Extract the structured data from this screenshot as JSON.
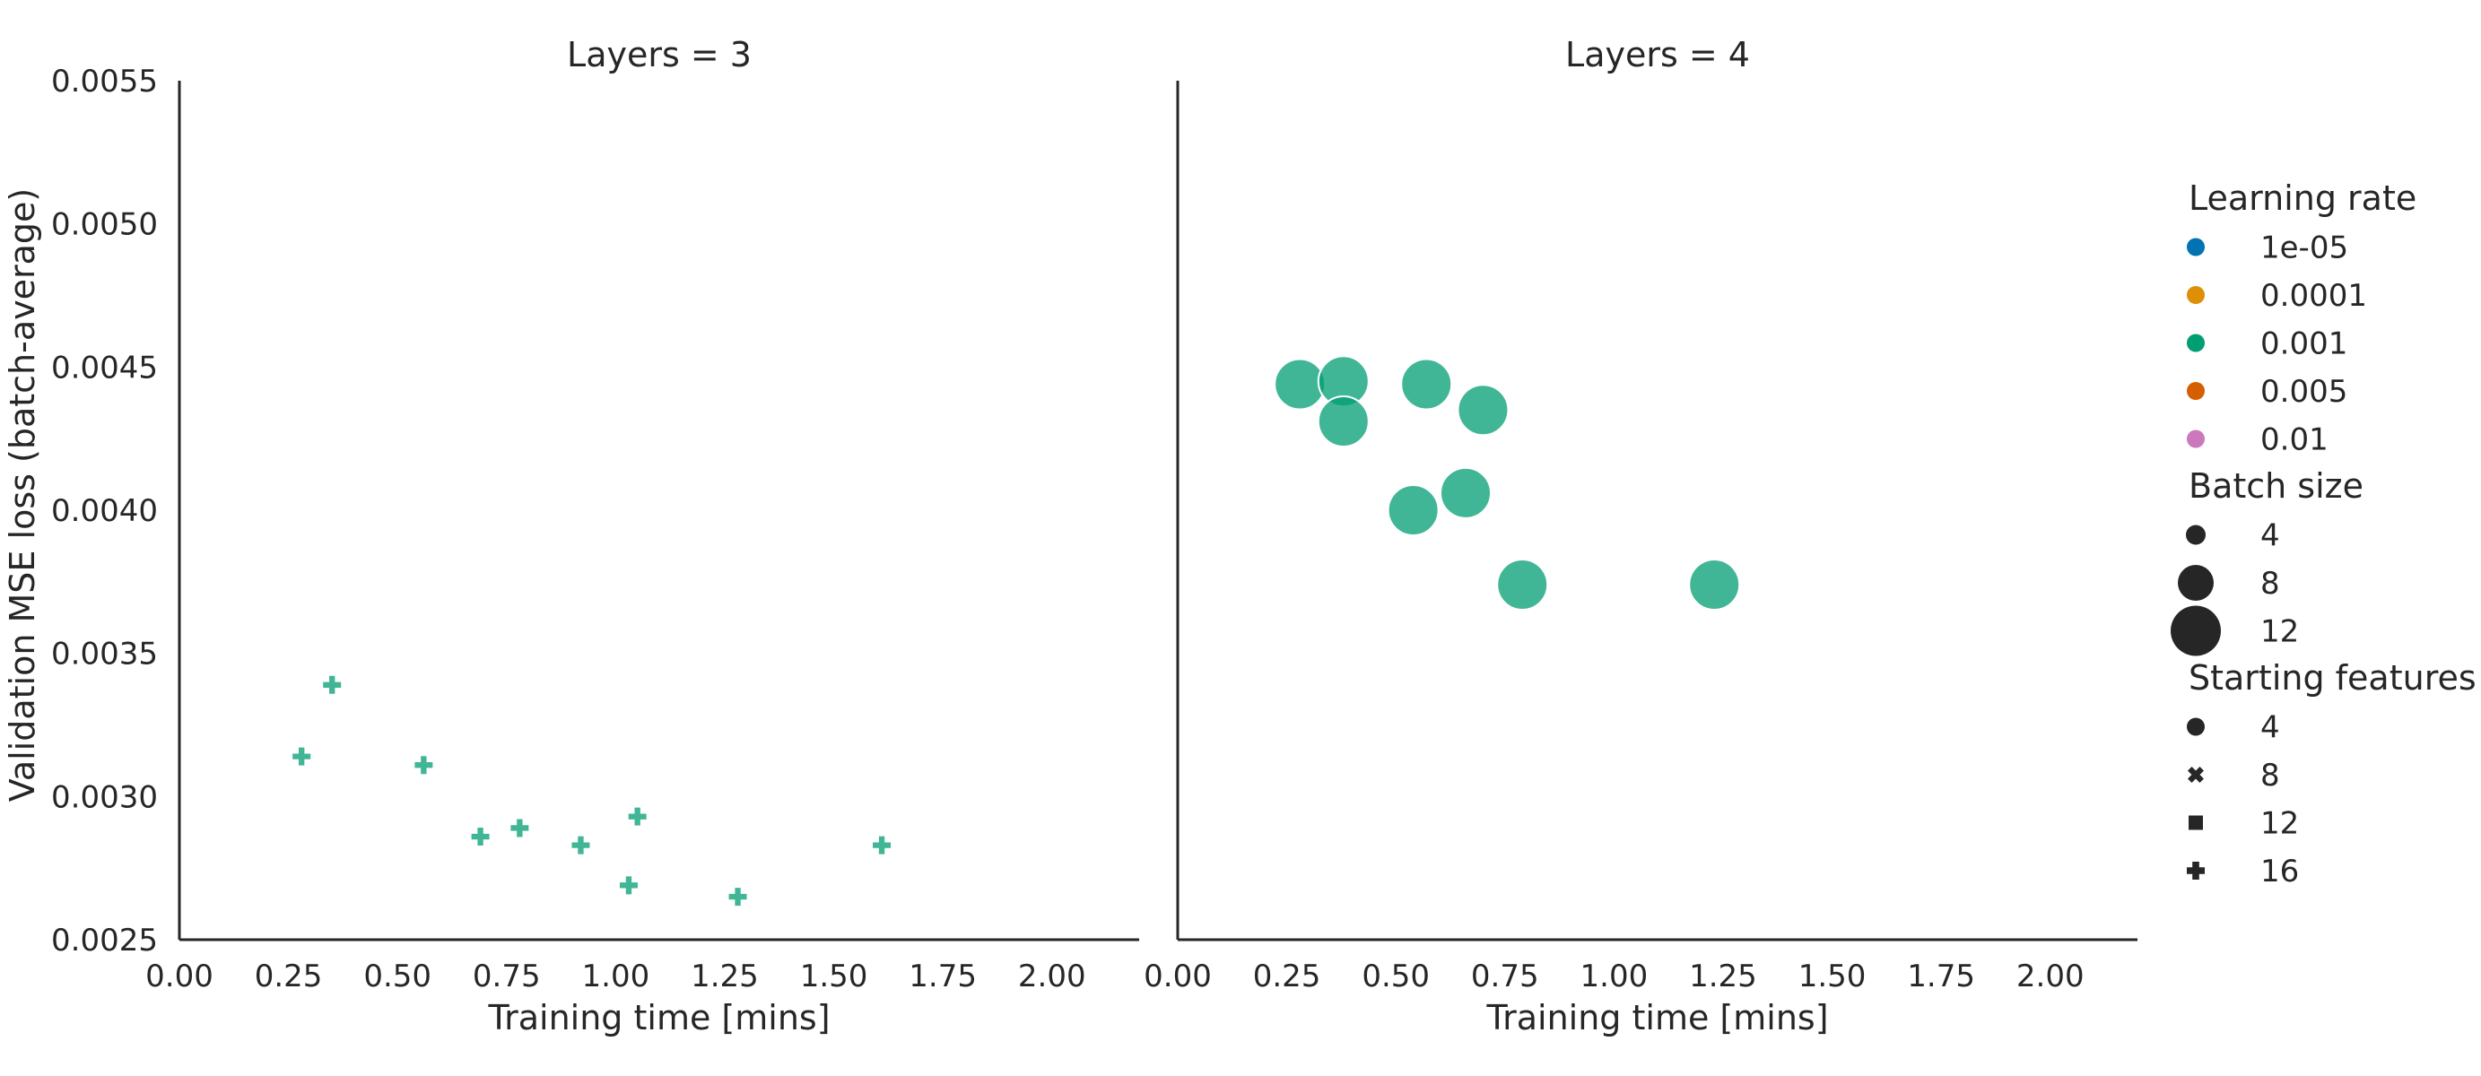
{
  "chart_data": {
    "type": "scatter",
    "ylabel": "Validation MSE loss (batch-average)",
    "xlabel": "Training time [mins]",
    "ylim": [
      0.0025,
      0.0055
    ],
    "yticks": [
      "0.0025",
      "0.0030",
      "0.0035",
      "0.0040",
      "0.0045",
      "0.0050",
      "0.0055"
    ],
    "xlim": [
      0.0,
      2.2
    ],
    "xticks": [
      "0.00",
      "0.25",
      "0.50",
      "0.75",
      "1.00",
      "1.25",
      "1.50",
      "1.75",
      "2.00"
    ],
    "grid": false,
    "legend_position": "right",
    "panels": [
      {
        "title": "Layers = 3",
        "points": [
          {
            "x": 0.28,
            "y": 0.00314,
            "learning_rate": "0.001",
            "batch_size": "4",
            "starting_features": "16"
          },
          {
            "x": 0.35,
            "y": 0.00339,
            "learning_rate": "0.001",
            "batch_size": "4",
            "starting_features": "16"
          },
          {
            "x": 0.56,
            "y": 0.00311,
            "learning_rate": "0.001",
            "batch_size": "4",
            "starting_features": "16"
          },
          {
            "x": 0.69,
            "y": 0.00286,
            "learning_rate": "0.001",
            "batch_size": "4",
            "starting_features": "16"
          },
          {
            "x": 0.78,
            "y": 0.00289,
            "learning_rate": "0.001",
            "batch_size": "4",
            "starting_features": "16"
          },
          {
            "x": 0.92,
            "y": 0.00283,
            "learning_rate": "0.001",
            "batch_size": "4",
            "starting_features": "16"
          },
          {
            "x": 1.03,
            "y": 0.00269,
            "learning_rate": "0.001",
            "batch_size": "4",
            "starting_features": "16"
          },
          {
            "x": 1.05,
            "y": 0.00293,
            "learning_rate": "0.001",
            "batch_size": "4",
            "starting_features": "16"
          },
          {
            "x": 1.28,
            "y": 0.00265,
            "learning_rate": "0.001",
            "batch_size": "4",
            "starting_features": "16"
          },
          {
            "x": 1.61,
            "y": 0.00283,
            "learning_rate": "0.001",
            "batch_size": "4",
            "starting_features": "16"
          }
        ]
      },
      {
        "title": "Layers = 4",
        "points": [
          {
            "x": 0.28,
            "y": 0.00444,
            "learning_rate": "0.001",
            "batch_size": "12",
            "starting_features": "4"
          },
          {
            "x": 0.38,
            "y": 0.00445,
            "learning_rate": "0.001",
            "batch_size": "12",
            "starting_features": "4"
          },
          {
            "x": 0.38,
            "y": 0.00431,
            "learning_rate": "0.001",
            "batch_size": "12",
            "starting_features": "4"
          },
          {
            "x": 0.57,
            "y": 0.00444,
            "learning_rate": "0.001",
            "batch_size": "12",
            "starting_features": "4"
          },
          {
            "x": 0.7,
            "y": 0.00435,
            "learning_rate": "0.001",
            "batch_size": "12",
            "starting_features": "4"
          },
          {
            "x": 0.54,
            "y": 0.004,
            "learning_rate": "0.001",
            "batch_size": "12",
            "starting_features": "4"
          },
          {
            "x": 0.66,
            "y": 0.00406,
            "learning_rate": "0.001",
            "batch_size": "12",
            "starting_features": "4"
          },
          {
            "x": 0.79,
            "y": 0.00374,
            "learning_rate": "0.001",
            "batch_size": "12",
            "starting_features": "4"
          },
          {
            "x": 1.23,
            "y": 0.00374,
            "learning_rate": "0.001",
            "batch_size": "12",
            "starting_features": "4"
          }
        ]
      }
    ],
    "legend": {
      "sections": [
        {
          "title": "Learning rate",
          "kind": "hue",
          "items": [
            {
              "label": "1e-05",
              "color": "#0173b2"
            },
            {
              "label": "0.0001",
              "color": "#de8f05"
            },
            {
              "label": "0.001",
              "color": "#029e73"
            },
            {
              "label": "0.005",
              "color": "#d55e00"
            },
            {
              "label": "0.01",
              "color": "#cc78bc"
            }
          ]
        },
        {
          "title": "Batch size",
          "kind": "size",
          "items": [
            {
              "label": "4",
              "size_level": 1
            },
            {
              "label": "8",
              "size_level": 2
            },
            {
              "label": "12",
              "size_level": 3
            }
          ]
        },
        {
          "title": "Starting features",
          "kind": "style",
          "items": [
            {
              "label": "4",
              "marker": "circle"
            },
            {
              "label": "8",
              "marker": "x"
            },
            {
              "label": "12",
              "marker": "square"
            },
            {
              "label": "16",
              "marker": "plus"
            }
          ]
        }
      ]
    }
  }
}
